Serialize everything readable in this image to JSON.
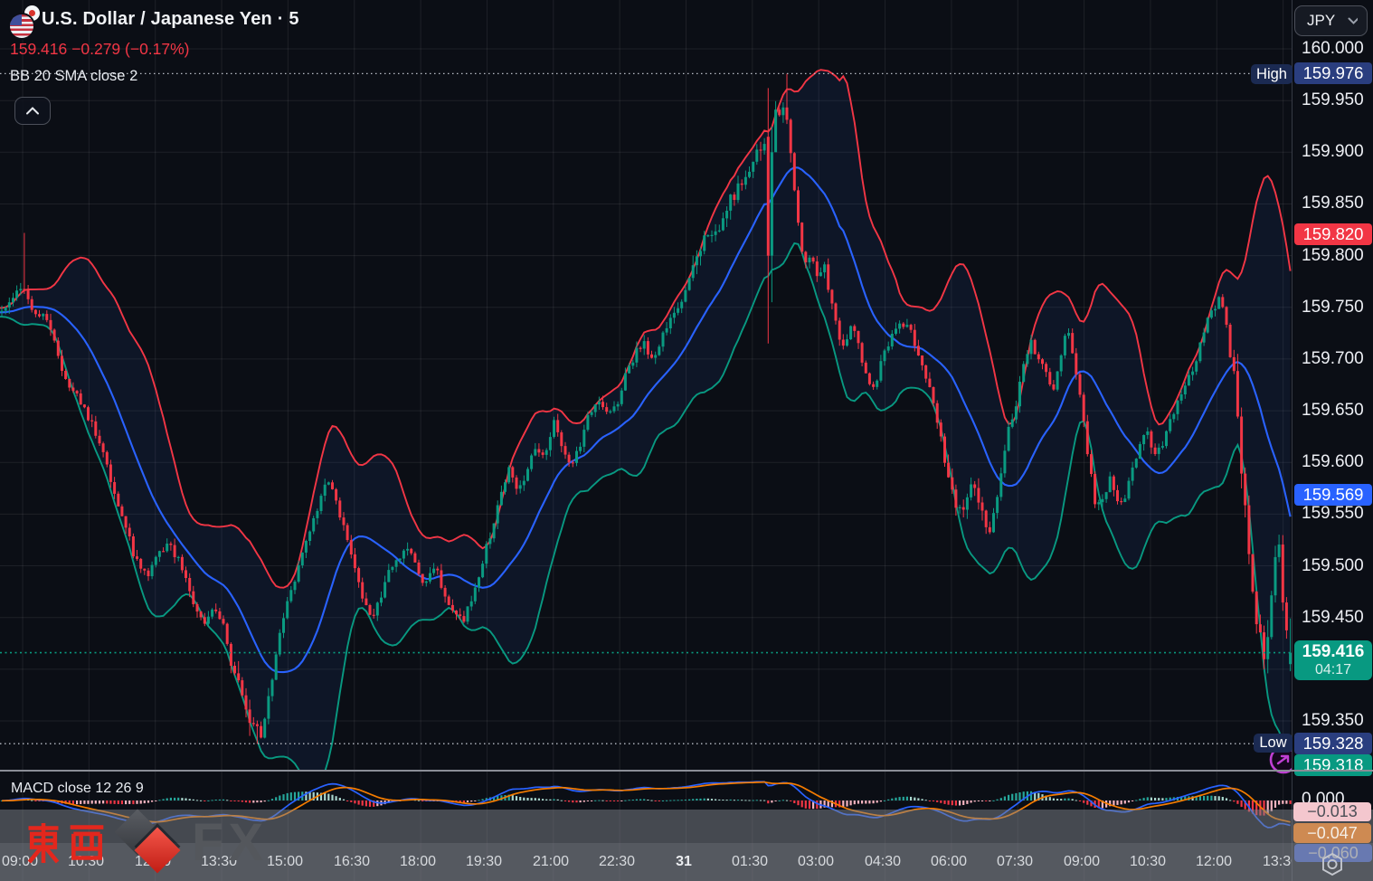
{
  "header": {
    "title": "U.S. Dollar / Japanese Yen · 5",
    "last_price": "159.416",
    "change": "−0.279 (−0.17%)",
    "change_color": "#f23645",
    "indicator_label": "BB 20 SMA close 2"
  },
  "toolbar": {
    "currency_selector": "JPY"
  },
  "price_axis": {
    "ticks": [
      "160.000",
      "159.950",
      "159.900",
      "159.850",
      "159.800",
      "159.750",
      "159.700",
      "159.650",
      "159.600",
      "159.550",
      "159.500",
      "159.450",
      "159.350"
    ],
    "badges": {
      "high_label": "High",
      "high_value": "159.976",
      "bb_upper": "159.820",
      "bb_basis": "159.569",
      "last_value": "159.416",
      "countdown": "04:17",
      "low_label": "Low",
      "low_value": "159.328",
      "bb_lower": "159.318"
    },
    "colors": {
      "navy": "#2a3e7f",
      "red": "#f23645",
      "blue": "#2962ff",
      "teal": "#089981"
    }
  },
  "time_axis": {
    "labels": [
      "09:00",
      "10:30",
      "12:00",
      "13:30",
      "15:00",
      "16:30",
      "18:00",
      "19:30",
      "21:00",
      "22:30",
      "31",
      "01:30",
      "03:00",
      "04:30",
      "06:00",
      "07:30",
      "09:00",
      "10:30",
      "12:00",
      "13:30"
    ],
    "bold_index": 10
  },
  "macd_panel": {
    "title": "MACD close 12 26 9",
    "zero_tick": "0.000",
    "histogram_value": "−0.013",
    "signal_value": "−0.047",
    "macd_value": "−0.060",
    "colors": {
      "macd_line": "#2962ff",
      "signal_line": "#f57c00",
      "hist_up": "#26a69a",
      "hist_up_fade": "#a9d6cd",
      "hist_down": "#f23645",
      "hist_down_fade": "#f5b3bf",
      "hist_badge_bg": "#f4c7ce",
      "signal_badge_bg": "#ce8a52",
      "macd_badge_bg": "#3e66f3"
    }
  },
  "watermark": {
    "kanji": "東西",
    "latin": "FX"
  },
  "chart_data": {
    "type": "candlestick",
    "symbol": "USDJPY",
    "interval_minutes": 5,
    "session_high": 159.976,
    "session_low": 159.328,
    "last_close": 159.416,
    "bollinger": {
      "length": 20,
      "source": "close",
      "stdev": 2,
      "upper_now": 159.82,
      "basis_now": 159.569,
      "lower_now": 159.318
    },
    "macd": {
      "fast": 12,
      "slow": 26,
      "signal": 9,
      "hist_now": -0.013,
      "signal_now": -0.047,
      "macd_now": -0.06
    },
    "y_axis": {
      "min": 159.3,
      "max": 160.02,
      "tick_step": 0.05
    },
    "price_path": [
      [
        0,
        159.745
      ],
      [
        14,
        159.76
      ],
      [
        24,
        159.77
      ],
      [
        34,
        159.75
      ],
      [
        44,
        159.745
      ],
      [
        54,
        159.74
      ],
      [
        64,
        159.7
      ],
      [
        76,
        159.675
      ],
      [
        88,
        159.66
      ],
      [
        100,
        159.64
      ],
      [
        112,
        159.615
      ],
      [
        125,
        159.575
      ],
      [
        137,
        159.545
      ],
      [
        150,
        159.505
      ],
      [
        163,
        159.49
      ],
      [
        175,
        159.515
      ],
      [
        188,
        159.52
      ],
      [
        200,
        159.5
      ],
      [
        212,
        159.47
      ],
      [
        224,
        159.445
      ],
      [
        236,
        159.46
      ],
      [
        248,
        159.44
      ],
      [
        258,
        159.4
      ],
      [
        268,
        159.38
      ],
      [
        278,
        159.35
      ],
      [
        288,
        159.34
      ],
      [
        298,
        159.37
      ],
      [
        308,
        159.43
      ],
      [
        318,
        159.465
      ],
      [
        330,
        159.5
      ],
      [
        342,
        159.53
      ],
      [
        352,
        159.56
      ],
      [
        362,
        159.585
      ],
      [
        372,
        159.56
      ],
      [
        382,
        159.53
      ],
      [
        392,
        159.5
      ],
      [
        402,
        159.465
      ],
      [
        412,
        159.45
      ],
      [
        422,
        159.47
      ],
      [
        432,
        159.5
      ],
      [
        442,
        159.51
      ],
      [
        452,
        159.52
      ],
      [
        462,
        159.49
      ],
      [
        472,
        159.485
      ],
      [
        482,
        159.5
      ],
      [
        492,
        159.47
      ],
      [
        502,
        159.455
      ],
      [
        512,
        159.445
      ],
      [
        522,
        159.47
      ],
      [
        532,
        159.5
      ],
      [
        542,
        159.53
      ],
      [
        552,
        159.56
      ],
      [
        562,
        159.595
      ],
      [
        572,
        159.575
      ],
      [
        582,
        159.59
      ],
      [
        592,
        159.615
      ],
      [
        602,
        159.605
      ],
      [
        612,
        159.64
      ],
      [
        622,
        159.615
      ],
      [
        632,
        159.595
      ],
      [
        642,
        159.62
      ],
      [
        652,
        159.65
      ],
      [
        662,
        159.66
      ],
      [
        672,
        159.645
      ],
      [
        682,
        159.655
      ],
      [
        692,
        159.685
      ],
      [
        702,
        159.705
      ],
      [
        712,
        159.715
      ],
      [
        722,
        159.7
      ],
      [
        732,
        159.72
      ],
      [
        742,
        159.74
      ],
      [
        752,
        159.755
      ],
      [
        762,
        159.775
      ],
      [
        772,
        159.8
      ],
      [
        782,
        159.825
      ],
      [
        792,
        159.82
      ],
      [
        802,
        159.845
      ],
      [
        812,
        159.86
      ],
      [
        822,
        159.87
      ],
      [
        832,
        159.885
      ],
      [
        842,
        159.905
      ],
      [
        852,
        159.925
      ],
      [
        860,
        159.94
      ],
      [
        866,
        159.95
      ],
      [
        872,
        159.93
      ],
      [
        878,
        159.87
      ],
      [
        884,
        159.82
      ],
      [
        890,
        159.79
      ],
      [
        897,
        159.8
      ],
      [
        904,
        159.78
      ],
      [
        911,
        159.79
      ],
      [
        918,
        159.76
      ],
      [
        926,
        159.725
      ],
      [
        934,
        159.71
      ],
      [
        942,
        159.735
      ],
      [
        950,
        159.71
      ],
      [
        958,
        159.685
      ],
      [
        966,
        159.67
      ],
      [
        974,
        159.695
      ],
      [
        982,
        159.715
      ],
      [
        992,
        159.73
      ],
      [
        1002,
        159.735
      ],
      [
        1012,
        159.715
      ],
      [
        1022,
        159.69
      ],
      [
        1032,
        159.66
      ],
      [
        1042,
        159.615
      ],
      [
        1052,
        159.575
      ],
      [
        1060,
        159.55
      ],
      [
        1068,
        159.565
      ],
      [
        1076,
        159.58
      ],
      [
        1084,
        159.555
      ],
      [
        1092,
        159.525
      ],
      [
        1100,
        159.55
      ],
      [
        1108,
        159.6
      ],
      [
        1116,
        159.635
      ],
      [
        1124,
        159.66
      ],
      [
        1132,
        159.695
      ],
      [
        1140,
        159.715
      ],
      [
        1148,
        159.7
      ],
      [
        1156,
        159.685
      ],
      [
        1164,
        159.67
      ],
      [
        1172,
        159.7
      ],
      [
        1180,
        159.73
      ],
      [
        1188,
        159.7
      ],
      [
        1196,
        159.65
      ],
      [
        1204,
        159.6
      ],
      [
        1212,
        159.555
      ],
      [
        1220,
        159.565
      ],
      [
        1228,
        159.585
      ],
      [
        1236,
        159.56
      ],
      [
        1244,
        159.565
      ],
      [
        1252,
        159.595
      ],
      [
        1260,
        159.615
      ],
      [
        1268,
        159.63
      ],
      [
        1276,
        159.605
      ],
      [
        1284,
        159.615
      ],
      [
        1292,
        159.635
      ],
      [
        1300,
        159.655
      ],
      [
        1308,
        159.67
      ],
      [
        1316,
        159.685
      ],
      [
        1324,
        159.705
      ],
      [
        1332,
        159.73
      ],
      [
        1340,
        159.745
      ],
      [
        1348,
        159.76
      ],
      [
        1356,
        159.74
      ],
      [
        1362,
        159.7
      ],
      [
        1368,
        159.645
      ],
      [
        1374,
        159.585
      ],
      [
        1380,
        159.525
      ],
      [
        1386,
        159.475
      ],
      [
        1392,
        159.435
      ],
      [
        1398,
        159.415
      ],
      [
        1404,
        159.445
      ],
      [
        1410,
        159.5
      ],
      [
        1414,
        159.53
      ],
      [
        1418,
        159.475
      ],
      [
        1422,
        159.435
      ],
      [
        1425,
        159.405
      ],
      [
        1428,
        159.416
      ]
    ]
  }
}
